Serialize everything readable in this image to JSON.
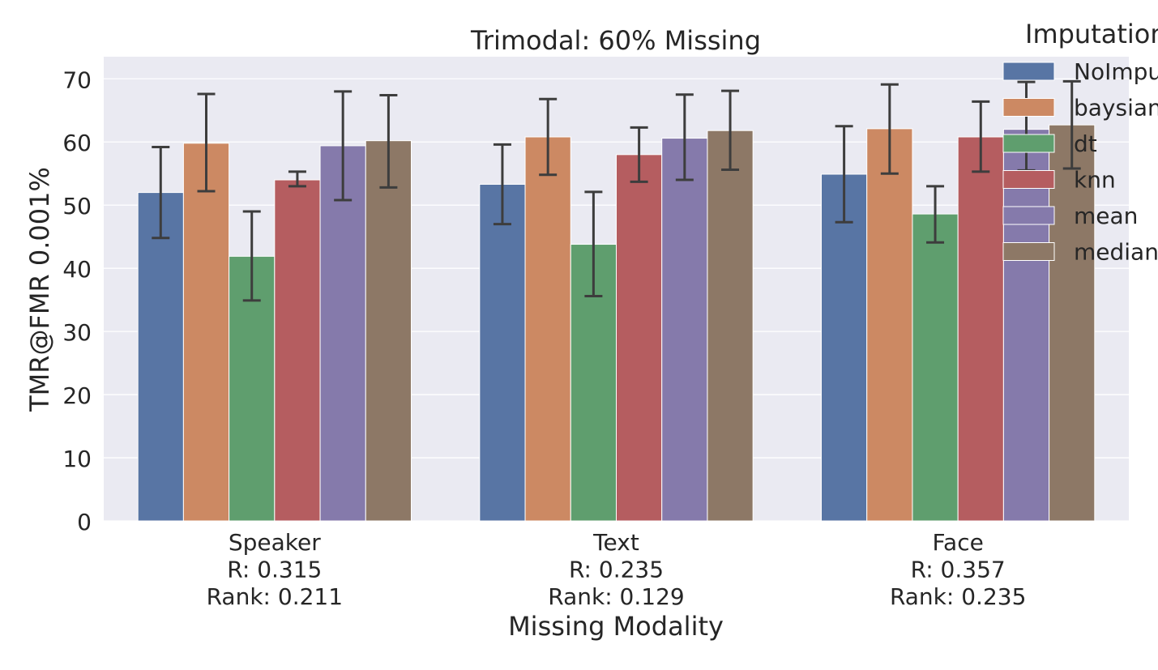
{
  "chart_data": {
    "type": "bar",
    "title": "Trimodal: 60% Missing",
    "xlabel": "Missing Modality",
    "ylabel": "TMR@FMR 0.001%",
    "ylim": [
      0,
      73.5
    ],
    "yticks": [
      0,
      10,
      20,
      30,
      40,
      50,
      60,
      70
    ],
    "grid": true,
    "legend_title": "Imputation",
    "legend_position": "top-right (clipped)",
    "categories": [
      [
        "Speaker",
        "R: 0.315",
        "Rank: 0.211"
      ],
      [
        "Text",
        "R: 0.235",
        "Rank: 0.129"
      ],
      [
        "Face",
        "R: 0.357",
        "Rank: 0.235"
      ]
    ],
    "series": [
      {
        "name": "NoImpu",
        "color": "#5875a4",
        "values": [
          52.0,
          53.3,
          54.9
        ],
        "err_low": [
          44.8,
          47.0,
          47.3
        ],
        "err_high": [
          59.2,
          59.6,
          62.5
        ]
      },
      {
        "name": "baysian",
        "color": "#cc8963",
        "values": [
          59.8,
          60.8,
          62.1
        ],
        "err_low": [
          52.2,
          54.8,
          55.0
        ],
        "err_high": [
          67.6,
          66.8,
          69.1
        ]
      },
      {
        "name": "dt",
        "color": "#5f9e6e",
        "values": [
          41.9,
          43.8,
          48.6
        ],
        "err_low": [
          34.9,
          35.6,
          44.1
        ],
        "err_high": [
          49.0,
          52.1,
          53.0
        ]
      },
      {
        "name": "knn",
        "color": "#b55d60",
        "values": [
          54.0,
          58.0,
          60.8
        ],
        "err_low": [
          53.0,
          53.7,
          55.3
        ],
        "err_high": [
          55.3,
          62.3,
          66.4
        ]
      },
      {
        "name": "mean",
        "color": "#857aab",
        "values": [
          59.4,
          60.6,
          62.0
        ],
        "err_low": [
          50.8,
          54.0,
          55.5
        ],
        "err_high": [
          68.0,
          67.5,
          69.5
        ]
      },
      {
        "name": "median",
        "color": "#8d7866",
        "values": [
          60.2,
          61.8,
          62.7
        ],
        "err_low": [
          52.8,
          55.6,
          55.8
        ],
        "err_high": [
          67.4,
          68.1,
          69.6
        ]
      }
    ]
  }
}
